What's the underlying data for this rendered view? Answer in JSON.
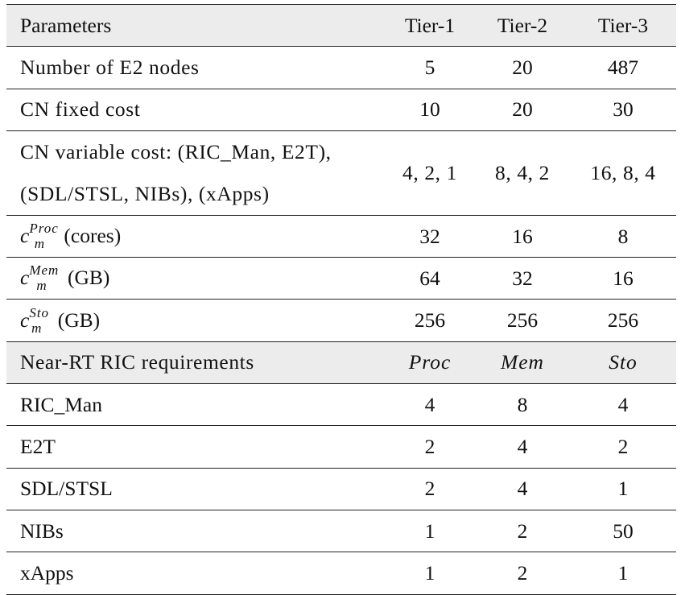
{
  "headers": {
    "parameters": "Parameters",
    "tiers": [
      "Tier-1",
      "Tier-2",
      "Tier-3"
    ]
  },
  "rows": [
    {
      "label": "Number of E2 nodes",
      "values": [
        "5",
        "20",
        "487"
      ]
    },
    {
      "label": "CN fixed cost",
      "values": [
        "10",
        "20",
        "30"
      ]
    },
    {
      "label_line1": "CN variable cost: (RIC_Man, E2T),",
      "label_line2": "(SDL/STSL, NIBs), (xApps)",
      "values": [
        "4, 2, 1",
        "8, 4, 2",
        "16, 8, 4"
      ]
    },
    {
      "symbol": "c",
      "sup": "Proc",
      "sub": "m",
      "unit": "(cores)",
      "values": [
        "32",
        "16",
        "8"
      ]
    },
    {
      "symbol": "c",
      "sup": "Mem",
      "sub": "m",
      "unit": "(GB)",
      "values": [
        "64",
        "32",
        "16"
      ]
    },
    {
      "symbol": "c",
      "sup": "Sto",
      "sub": "m",
      "unit": "(GB)",
      "values": [
        "256",
        "256",
        "256"
      ]
    }
  ],
  "requirements_header": {
    "label": "Near-RT RIC requirements",
    "columns": [
      "Proc",
      "Mem",
      "Sto"
    ]
  },
  "requirements": [
    {
      "label": "RIC_Man",
      "values": [
        "4",
        "8",
        "4"
      ]
    },
    {
      "label": "E2T",
      "values": [
        "2",
        "4",
        "2"
      ]
    },
    {
      "label": "SDL/STSL",
      "values": [
        "2",
        "4",
        "1"
      ]
    },
    {
      "label": "NIBs",
      "values": [
        "1",
        "2",
        "50"
      ]
    },
    {
      "label": "xApps",
      "values": [
        "1",
        "2",
        "1"
      ]
    }
  ]
}
